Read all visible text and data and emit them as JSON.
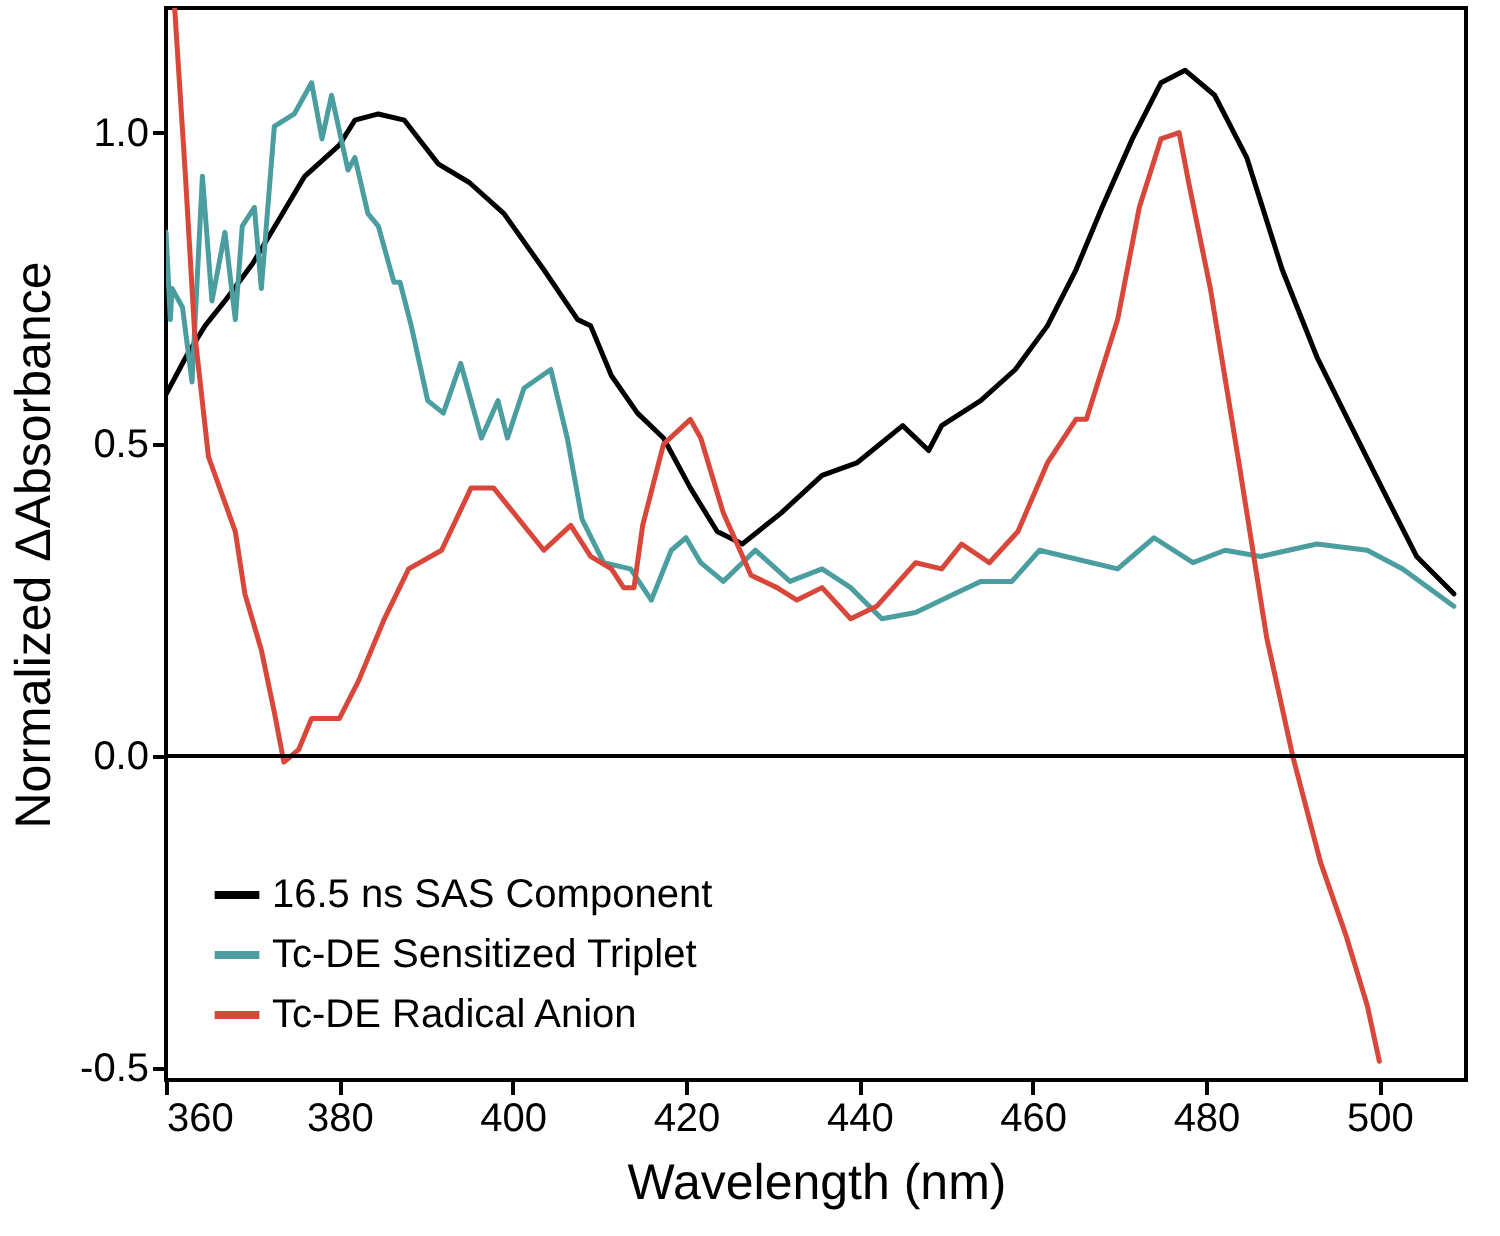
{
  "chart_data": {
    "type": "line",
    "xlabel": "Wavelength (nm)",
    "ylabel": "Normalized ΔAbsorbance",
    "xlim": [
      360,
      510
    ],
    "ylim": [
      -0.52,
      1.2
    ],
    "xticks": [
      360,
      380,
      400,
      420,
      440,
      460,
      480,
      500
    ],
    "yticks": [
      {
        "value": -0.5,
        "label": "-0.5"
      },
      {
        "value": 0,
        "label": "0.0"
      },
      {
        "value": 0.5,
        "label": "0.5"
      },
      {
        "value": 1,
        "label": "1.0"
      }
    ],
    "legend": "bottom left",
    "ref_lines": [
      {
        "axis": "y",
        "value": 0,
        "color": "#000000"
      }
    ],
    "series": [
      {
        "name": "16.5 ns SAS Component",
        "color": "#000000",
        "x": [
          360,
          362.3,
          364.5,
          366.8,
          370,
          373,
          376,
          380,
          381.8,
          384.5,
          387.5,
          391.4,
          395,
          399,
          403.6,
          407.5,
          409,
          411.4,
          414.4,
          417.4,
          420.5,
          423.6,
          426.5,
          431,
          435.7,
          439.7,
          445,
          448,
          449.5,
          454,
          458,
          461.7,
          465,
          468,
          471.5,
          474.8,
          477.6,
          481,
          484.7,
          488.8,
          492.8,
          496,
          500.3,
          504.3,
          508.6
        ],
        "values": [
          0.58,
          0.64,
          0.69,
          0.73,
          0.79,
          0.86,
          0.93,
          0.98,
          1.02,
          1.03,
          1.02,
          0.95,
          0.92,
          0.87,
          0.78,
          0.7,
          0.69,
          0.61,
          0.55,
          0.51,
          0.43,
          0.36,
          0.34,
          0.39,
          0.45,
          0.47,
          0.53,
          0.49,
          0.53,
          0.57,
          0.62,
          0.69,
          0.78,
          0.88,
          0.99,
          1.08,
          1.1,
          1.06,
          0.96,
          0.78,
          0.64,
          0.55,
          0.43,
          0.32,
          0.26
        ]
      },
      {
        "name": "Tc-DE Sensitized Triplet",
        "color": "#4a9ea0",
        "x": [
          360,
          360.5,
          360.7,
          361.9,
          363,
          364.2,
          365.3,
          366.8,
          368,
          368.8,
          370.2,
          371,
          372.5,
          374.8,
          376.8,
          378,
          379.1,
          381,
          381.8,
          383.3,
          384.5,
          386.3,
          387,
          388.3,
          390.2,
          392,
          394,
          396.4,
          398.3,
          399.4,
          401.3,
          404.4,
          406.3,
          408,
          410.5,
          413.6,
          416,
          418.3,
          420,
          421.7,
          424.3,
          428,
          432,
          435.7,
          439,
          442.6,
          446.5,
          451,
          454,
          457.6,
          460.8,
          463.8,
          469.8,
          474,
          478.5,
          482.2,
          486.3,
          492.8,
          498.6,
          502.7,
          508.6
        ],
        "values": [
          0.84,
          0.7,
          0.75,
          0.72,
          0.6,
          0.93,
          0.73,
          0.84,
          0.7,
          0.85,
          0.88,
          0.75,
          1.01,
          1.03,
          1.08,
          0.99,
          1.06,
          0.94,
          0.96,
          0.87,
          0.85,
          0.76,
          0.76,
          0.69,
          0.57,
          0.55,
          0.63,
          0.51,
          0.57,
          0.51,
          0.59,
          0.62,
          0.51,
          0.38,
          0.31,
          0.3,
          0.25,
          0.33,
          0.35,
          0.31,
          0.28,
          0.33,
          0.28,
          0.3,
          0.27,
          0.22,
          0.23,
          0.26,
          0.28,
          0.28,
          0.33,
          0.32,
          0.3,
          0.35,
          0.31,
          0.33,
          0.32,
          0.34,
          0.33,
          0.3,
          0.24
        ]
      },
      {
        "name": "Tc-DE Radical Anion",
        "color": "#d9473a",
        "x": [
          361,
          362.2,
          363.3,
          364.9,
          368,
          369.1,
          371,
          372.5,
          373.6,
          375.3,
          376.8,
          380,
          382.2,
          385.2,
          388,
          391.8,
          395.2,
          397.8,
          403.6,
          406.7,
          409,
          411.4,
          412.8,
          414,
          415,
          417.4,
          420.5,
          421.7,
          424.3,
          427.5,
          430.5,
          432.8,
          435.7,
          439,
          442,
          446.5,
          449.5,
          451.8,
          455,
          458.3,
          461.7,
          465,
          466.2,
          469.8,
          472.3,
          474.8,
          476.9,
          478,
          480.5,
          483.8,
          487,
          490,
          493.2,
          496.2,
          498.6,
          500
        ],
        "values": [
          1.2,
          0.94,
          0.68,
          0.48,
          0.36,
          0.26,
          0.17,
          0.07,
          -0.01,
          0.01,
          0.06,
          0.06,
          0.12,
          0.22,
          0.3,
          0.33,
          0.43,
          0.43,
          0.33,
          0.37,
          0.32,
          0.3,
          0.27,
          0.27,
          0.37,
          0.5,
          0.54,
          0.51,
          0.39,
          0.29,
          0.27,
          0.25,
          0.27,
          0.22,
          0.24,
          0.31,
          0.3,
          0.34,
          0.31,
          0.36,
          0.47,
          0.54,
          0.54,
          0.7,
          0.88,
          0.99,
          1.0,
          0.92,
          0.75,
          0.47,
          0.19,
          0,
          -0.17,
          -0.29,
          -0.4,
          -0.49
        ]
      }
    ]
  }
}
